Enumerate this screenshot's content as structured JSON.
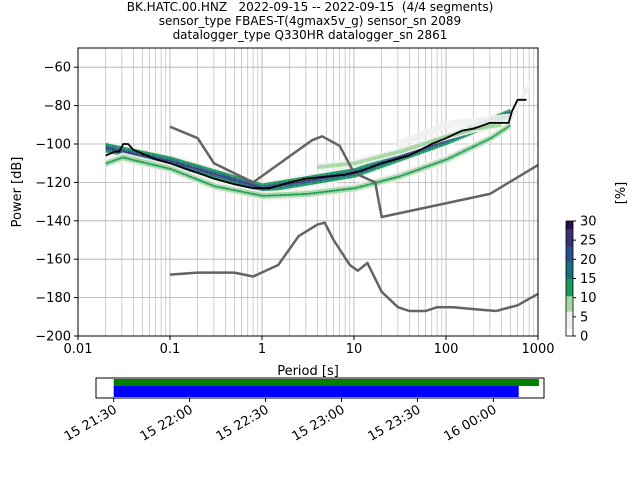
{
  "title": {
    "line1": "BK.HATC.00.HNZ   2022-09-15 -- 2022-09-15  (4/4 segments)",
    "line2": "sensor_type FBAES-T(4gmax5v_g) sensor_sn 2089",
    "line3": "datalogger_type Q330HR datalogger_sn 2861"
  },
  "chart_data": [
    {
      "type": "heatmap",
      "xlabel": "Period [s]",
      "ylabel": "Power [dB]",
      "xscale": "log",
      "xlim": [
        0.01,
        1000
      ],
      "ylim": [
        -200,
        -50
      ],
      "grid": true,
      "x_ticks": [
        0.01,
        0.1,
        1,
        10,
        100,
        1000
      ],
      "x_tick_labels": [
        "0.01",
        "0.1",
        "1",
        "10",
        "100",
        "1000"
      ],
      "y_ticks": [
        -200,
        -180,
        -160,
        -140,
        -120,
        -100,
        -80,
        -60
      ],
      "y_tick_labels": [
        "−200",
        "−180",
        "−160",
        "−140",
        "−120",
        "−100",
        "−80",
        "−60"
      ],
      "colorbar": {
        "label": "[%]",
        "range": [
          0,
          30
        ],
        "ticks": [
          0,
          5,
          10,
          15,
          20,
          25,
          30
        ],
        "tick_labels": [
          "0",
          "5",
          "10",
          "15",
          "20",
          "25",
          "30"
        ],
        "colors": [
          "#ffffff",
          "#f0f0f0",
          "#a4d8a0",
          "#1b9a5a",
          "#1b6f82",
          "#2a4f8c",
          "#3b3173",
          "#2c0a4a"
        ]
      },
      "series": [
        {
          "color": "#646464",
          "points": [
            [
              0.1,
              -91
            ],
            [
              0.2,
              -97
            ],
            [
              0.3,
              -110
            ],
            [
              0.8,
              -120
            ],
            [
              3.5,
              -98
            ],
            [
              4.5,
              -96
            ],
            [
              7,
              -101
            ],
            [
              10,
              -115
            ],
            [
              17,
              -120
            ],
            [
              20,
              -138
            ],
            [
              300,
              -126
            ],
            [
              1000,
              -111
            ]
          ]
        },
        {
          "color": "#646464",
          "points": [
            [
              0.1,
              -168
            ],
            [
              0.2,
              -167
            ],
            [
              0.5,
              -167
            ],
            [
              0.8,
              -169
            ],
            [
              1.5,
              -163
            ],
            [
              2.5,
              -148
            ],
            [
              4,
              -142
            ],
            [
              4.8,
              -141
            ],
            [
              6,
              -150
            ],
            [
              9,
              -163
            ],
            [
              11,
              -166
            ],
            [
              14,
              -162
            ],
            [
              20,
              -177
            ],
            [
              30,
              -185
            ],
            [
              40,
              -187
            ],
            [
              60,
              -187
            ],
            [
              80,
              -185
            ],
            [
              120,
              -185
            ],
            [
              200,
              -186
            ],
            [
              350,
              -187
            ],
            [
              600,
              -184
            ],
            [
              1000,
              -178
            ]
          ]
        },
        {
          "color": "#000000",
          "points": [
            [
              0.02,
              -106
            ],
            [
              0.025,
              -104
            ],
            [
              0.028,
              -104
            ],
            [
              0.031,
              -100
            ],
            [
              0.035,
              -100
            ],
            [
              0.04,
              -103
            ],
            [
              0.05,
              -105
            ],
            [
              0.07,
              -108
            ],
            [
              0.1,
              -110
            ],
            [
              0.15,
              -113
            ],
            [
              0.2,
              -115
            ],
            [
              0.3,
              -118
            ],
            [
              0.5,
              -121
            ],
            [
              0.8,
              -123
            ],
            [
              1.2,
              -123
            ],
            [
              2,
              -120
            ],
            [
              3,
              -118
            ],
            [
              5,
              -117
            ],
            [
              8,
              -116
            ],
            [
              12,
              -114
            ],
            [
              20,
              -110
            ],
            [
              40,
              -106
            ],
            [
              70,
              -100
            ],
            [
              100,
              -97
            ],
            [
              150,
              -93
            ],
            [
              200,
              -92
            ],
            [
              300,
              -89
            ],
            [
              480,
              -89
            ],
            [
              520,
              -83
            ],
            [
              600,
              -77
            ],
            [
              750,
              -77
            ]
          ]
        }
      ],
      "density_bands": [
        {
          "x": [
            [
              0.02,
              -102
            ],
            [
              0.1,
              -109
            ],
            [
              1,
              -123
            ],
            [
              10,
              -115
            ],
            [
              100,
              -98
            ],
            [
              500,
              -84
            ]
          ],
          "spread": 3,
          "level": 24
        },
        {
          "x": [
            [
              0.02,
              -110
            ],
            [
              0.03,
              -107
            ],
            [
              0.1,
              -113
            ],
            [
              0.3,
              -122
            ],
            [
              1,
              -127
            ],
            [
              3,
              -126
            ],
            [
              10,
              -123
            ],
            [
              30,
              -117
            ],
            [
              100,
              -108
            ],
            [
              300,
              -97
            ],
            [
              500,
              -90
            ]
          ],
          "spread": 2,
          "level": 12
        },
        {
          "x": [
            [
              4,
              -112
            ],
            [
              10,
              -110
            ],
            [
              30,
              -104
            ],
            [
              100,
              -96
            ],
            [
              200,
              -92
            ],
            [
              400,
              -90
            ]
          ],
          "spread": 1.5,
          "level": 10
        },
        {
          "x": [
            [
              30,
              -100
            ],
            [
              100,
              -90
            ],
            [
              500,
              -86
            ],
            [
              800,
              -69
            ]
          ],
          "spread": 1.5,
          "level": 8
        }
      ]
    },
    {
      "type": "timeline",
      "x_ticks": [
        "15 21:30",
        "15 22:00",
        "15 22:30",
        "15 23:00",
        "15 23:30",
        "16 00:00"
      ],
      "xlim_minutes": [
        1283,
        1460
      ],
      "bars": [
        {
          "color": "#008000",
          "start": 1290,
          "end": 1458
        },
        {
          "color": "#0000ff",
          "start": 1290,
          "end": 1450
        }
      ]
    }
  ]
}
